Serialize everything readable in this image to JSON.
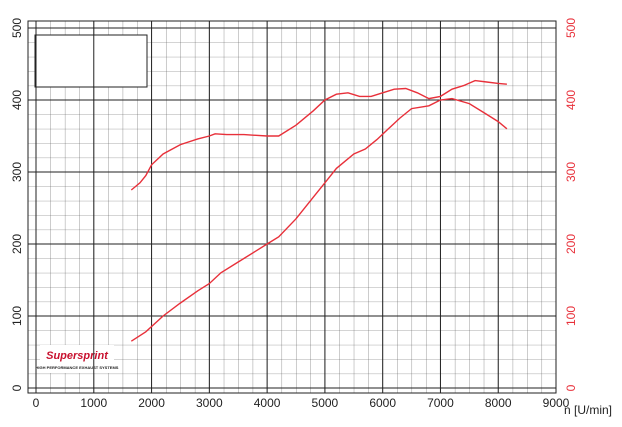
{
  "chart_data": {
    "type": "line",
    "xlabel": "n [U/min]",
    "xlim": [
      0,
      9000
    ],
    "xticks": [
      0,
      1000,
      2000,
      3000,
      4000,
      5000,
      6000,
      7000,
      8000,
      9000
    ],
    "ylim": [
      0,
      500
    ],
    "yticks": [
      0,
      100,
      200,
      300,
      400,
      500
    ],
    "y2lim": [
      0,
      500
    ],
    "y2ticks": [
      0,
      100,
      200,
      300,
      400,
      500
    ],
    "grid": true,
    "logo": {
      "name": "Supersprint",
      "tagline": "HIGH PERFORMANCE EXHAUST SYSTEMS"
    },
    "series": [
      {
        "color": "#e8303a",
        "x": [
          1650,
          1800,
          1900,
          2000,
          2200,
          2500,
          2800,
          3000,
          3100,
          3300,
          3600,
          4000,
          4200,
          4500,
          4800,
          5000,
          5200,
          5400,
          5600,
          5800,
          6000,
          6200,
          6400,
          6600,
          6800,
          7000,
          7200,
          7400,
          7600,
          7800,
          8000,
          8150
        ],
        "values": [
          275,
          285,
          295,
          310,
          325,
          338,
          346,
          350,
          353,
          352,
          352,
          350,
          350,
          365,
          385,
          400,
          408,
          410,
          405,
          405,
          410,
          415,
          416,
          410,
          402,
          405,
          415,
          420,
          427,
          425,
          423,
          422
        ]
      },
      {
        "color": "#e8303a",
        "x": [
          1650,
          1900,
          2200,
          2500,
          2800,
          3000,
          3200,
          3500,
          3800,
          4000,
          4200,
          4500,
          4800,
          5000,
          5200,
          5500,
          5700,
          5900,
          6100,
          6300,
          6500,
          6800,
          7000,
          7200,
          7500,
          7800,
          8000,
          8150
        ],
        "values": [
          65,
          78,
          100,
          118,
          135,
          145,
          160,
          175,
          190,
          200,
          210,
          235,
          265,
          285,
          305,
          325,
          332,
          345,
          360,
          375,
          388,
          392,
          400,
          402,
          395,
          380,
          370,
          360
        ]
      }
    ]
  }
}
